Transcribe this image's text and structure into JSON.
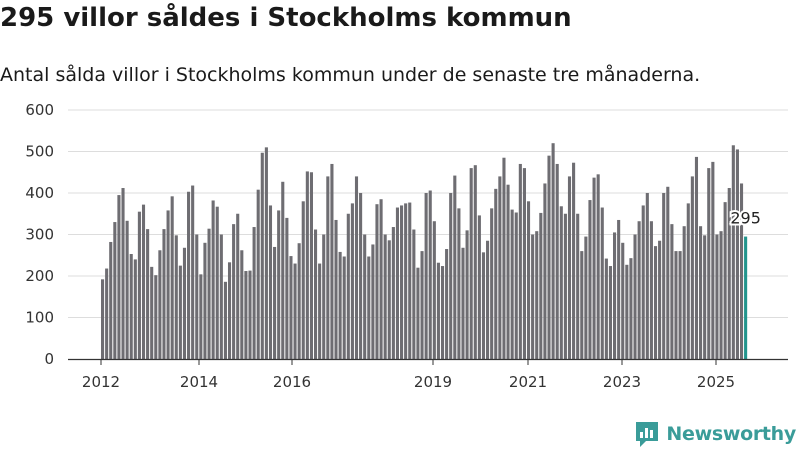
{
  "title": "295 villor såldes i Stockholms kommun",
  "subtitle": "Antal sålda villor i Stockholms kommun under de senaste tre månaderna.",
  "brand": {
    "name": "Newsworthy",
    "icon": "newsworthy-logo-icon"
  },
  "colors": {
    "bar": "#6e6d72",
    "highlight": "#22958d",
    "grid": "#dddddd",
    "axis": "#333333",
    "brand": "#3a9c99"
  },
  "chart_data": {
    "type": "bar",
    "title": "",
    "xlabel": "",
    "ylabel": "",
    "ylim": [
      0,
      600
    ],
    "yticks": [
      0,
      100,
      200,
      300,
      400,
      500,
      600
    ],
    "xticks": [
      "2012",
      "2014",
      "2016",
      "2019",
      "2021",
      "2023",
      "2025"
    ],
    "grid": true,
    "highlight": {
      "index": 157,
      "value": 295,
      "label": "295"
    },
    "series": [
      {
        "values": [
          192,
          218,
          282,
          330,
          395,
          412,
          333,
          253,
          240,
          355,
          372,
          313,
          222,
          202,
          262,
          313,
          358,
          392,
          298,
          225,
          268,
          403,
          418,
          300,
          204,
          280,
          314,
          382,
          367,
          300,
          186,
          233,
          325,
          350,
          262,
          212,
          213,
          318,
          408,
          497,
          510,
          370,
          270,
          358,
          427,
          340,
          248,
          230,
          279,
          380,
          452,
          450,
          312,
          230,
          300,
          440,
          470,
          335,
          258,
          247,
          350,
          375,
          440,
          400,
          300,
          247,
          276,
          373,
          385,
          300,
          286,
          318,
          365,
          370,
          375,
          377,
          312,
          220,
          260,
          400,
          406,
          332,
          232,
          224,
          265,
          400,
          442,
          363,
          268,
          310,
          460,
          467,
          346,
          257,
          285,
          363,
          410,
          440,
          485,
          420,
          360,
          353,
          470,
          460,
          380,
          300,
          308,
          352,
          423,
          490,
          520,
          470,
          368,
          350,
          440,
          473,
          350,
          260,
          295,
          383,
          437,
          445,
          365,
          242,
          224,
          305,
          335,
          280,
          227,
          243,
          300,
          332,
          370,
          400,
          332,
          272,
          285,
          400,
          415,
          325,
          260,
          260,
          320,
          375,
          440,
          487,
          320,
          298,
          460,
          475,
          300,
          308,
          378,
          412,
          515,
          505,
          423,
          295
        ]
      }
    ]
  }
}
